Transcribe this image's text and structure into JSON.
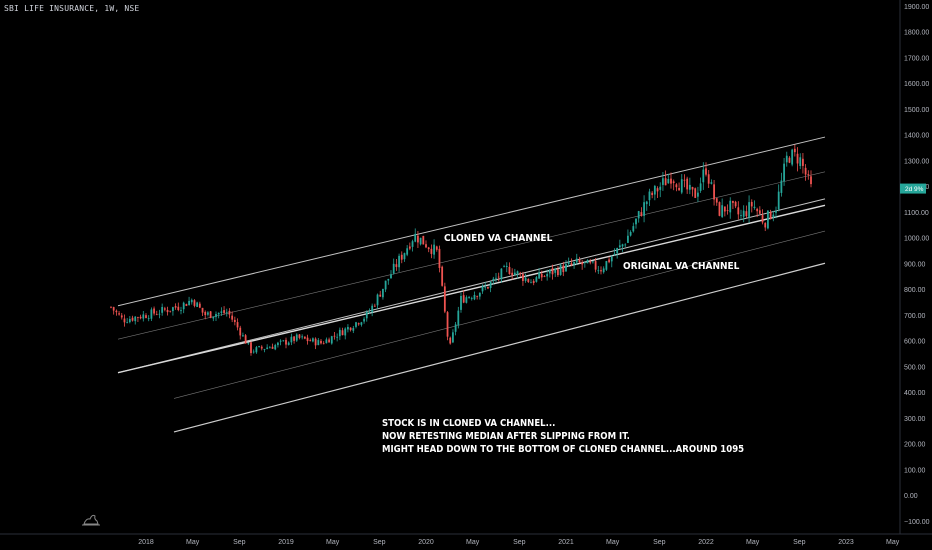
{
  "header": {
    "title": "SBI LIFE INSURANCE, 1W, NSE"
  },
  "chart_data": {
    "type": "candlestick",
    "x_tick_labels": [
      "2018",
      "May",
      "Sep",
      "2019",
      "May",
      "Sep",
      "2020",
      "May",
      "Sep",
      "2021",
      "May",
      "Sep",
      "2022",
      "May",
      "Sep",
      "2023",
      "May",
      "Se"
    ],
    "y_tick_labels": [
      "1900.00",
      "1800.00",
      "1700.00",
      "1600.00",
      "1500.00",
      "1400.00",
      "1300.00",
      "1200.00",
      "1100.00",
      "1000.00",
      "900.00",
      "800.00",
      "700.00",
      "600.00",
      "500.00",
      "400.00",
      "300.00",
      "200.00",
      "100.00",
      "0.00",
      "−100.00"
    ],
    "ylim": [
      -100,
      1900
    ],
    "price_path": [
      [
        "2017-10",
        730
      ],
      [
        "2017-11",
        680
      ],
      [
        "2017-12",
        690
      ],
      [
        "2018-02",
        710
      ],
      [
        "2018-04",
        735
      ],
      [
        "2018-05",
        760
      ],
      [
        "2018-06",
        700
      ],
      [
        "2018-08",
        710
      ],
      [
        "2018-09",
        640
      ],
      [
        "2018-10",
        560
      ],
      [
        "2018-12",
        580
      ],
      [
        "2019-02",
        610
      ],
      [
        "2019-04",
        590
      ],
      [
        "2019-06",
        640
      ],
      [
        "2019-08",
        700
      ],
      [
        "2019-10",
        860
      ],
      [
        "2019-12",
        1010
      ],
      [
        "2020-02",
        940
      ],
      [
        "2020-03",
        560
      ],
      [
        "2020-04",
        760
      ],
      [
        "2020-06",
        800
      ],
      [
        "2020-08",
        880
      ],
      [
        "2020-10",
        830
      ],
      [
        "2020-12",
        870
      ],
      [
        "2021-02",
        900
      ],
      [
        "2021-04",
        880
      ],
      [
        "2021-06",
        980
      ],
      [
        "2021-08",
        1150
      ],
      [
        "2021-10",
        1240
      ],
      [
        "2021-12",
        1160
      ],
      [
        "2022-01",
        1270
      ],
      [
        "2022-02",
        1100
      ],
      [
        "2022-03",
        1120
      ],
      [
        "2022-04",
        1080
      ],
      [
        "2022-05",
        1130
      ],
      [
        "2022-06",
        1060
      ],
      [
        "2022-07",
        1120
      ],
      [
        "2022-08",
        1320
      ],
      [
        "2022-09",
        1310
      ],
      [
        "2022-10",
        1190
      ]
    ],
    "current_price_label": "2d 9%",
    "annotations": [
      "CLONED VA CHANNEL",
      "ORIGINAL VA CHANNEL",
      "STOCK IS IN CLONED VA CHANNEL...",
      "NOW RETESTING MEDIAN AFTER SLIPPING FROM IT.",
      "MIGHT HEAD DOWN TO THE BOTTOM OF CLONED CHANNEL...AROUND 1095"
    ],
    "channels": {
      "cloned": {
        "upper": [
          [
            2017.8,
            735
          ],
          [
            2022.85,
            1390
          ]
        ],
        "median": [
          [
            2017.8,
            605
          ],
          [
            2022.85,
            1255
          ]
        ],
        "lower": [
          [
            2017.8,
            475
          ],
          [
            2022.85,
            1125
          ]
        ]
      },
      "original": {
        "upper": [
          [
            2017.8,
            475
          ],
          [
            2022.85,
            1150
          ]
        ],
        "median": [
          [
            2018.2,
            375
          ],
          [
            2022.85,
            1025
          ]
        ],
        "lower": [
          [
            2018.2,
            245
          ],
          [
            2022.85,
            900
          ]
        ]
      }
    },
    "colors": {
      "background": "#000000",
      "up_candle": "#26a69a",
      "down_candle": "#ef5350",
      "channel_line": "#d9d9d9",
      "price_label_bg": "#26a69a",
      "axis_text": "#b2b5be"
    },
    "grid": false
  }
}
